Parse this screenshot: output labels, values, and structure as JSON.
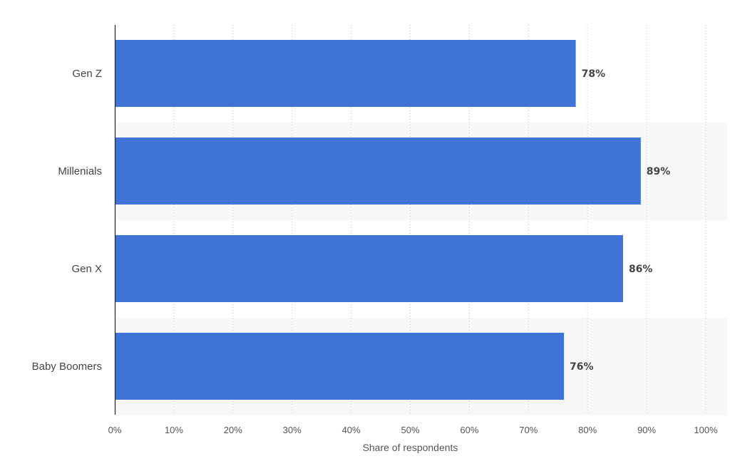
{
  "chart_data": {
    "type": "bar",
    "orientation": "horizontal",
    "categories": [
      "Gen Z",
      "Millenials",
      "Gen X",
      "Baby Boomers"
    ],
    "values": [
      78,
      89,
      86,
      76
    ],
    "value_labels": [
      "78%",
      "89%",
      "86%",
      "76%"
    ],
    "xlabel": "Share of respondents",
    "ylabel": "",
    "xlim": [
      0,
      100
    ],
    "x_ticks": [
      0,
      10,
      20,
      30,
      40,
      50,
      60,
      70,
      80,
      90,
      100
    ],
    "x_tick_labels": [
      "0%",
      "10%",
      "20%",
      "30%",
      "40%",
      "50%",
      "60%",
      "70%",
      "80%",
      "90%",
      "100%"
    ],
    "grid": "vertical-dotted",
    "legend": "none",
    "colors": {
      "bar": "#3f74d6",
      "band": "#f7f7f7",
      "grid": "#c8c8c8",
      "axis": "#222222"
    }
  }
}
